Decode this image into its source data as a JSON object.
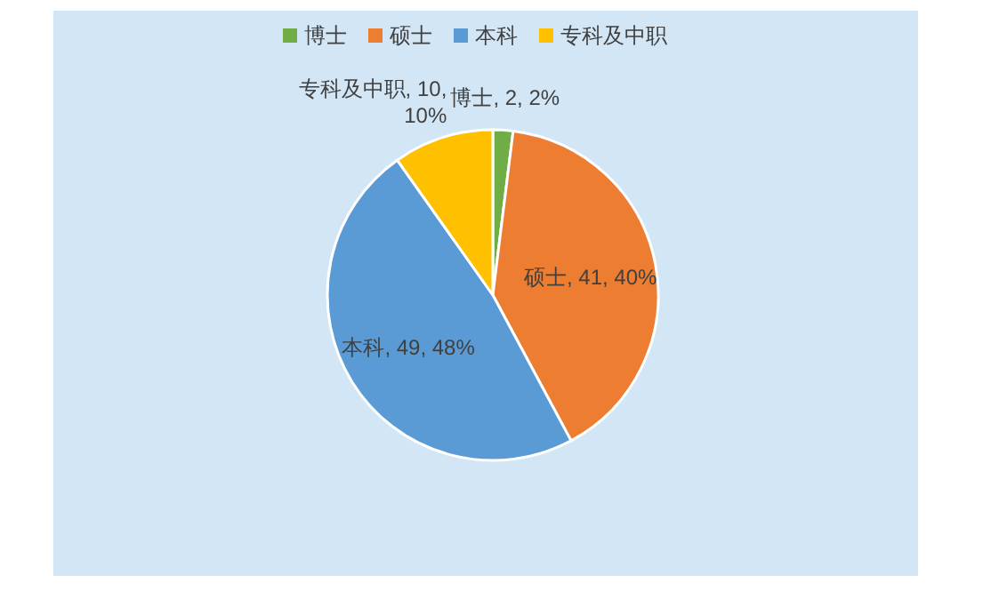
{
  "chart_data": {
    "type": "pie",
    "categories": [
      "博士",
      "硕士",
      "本科",
      "专科及中职"
    ],
    "values": [
      2,
      41,
      49,
      10
    ],
    "colors": [
      "#70ad47",
      "#ed7d31",
      "#5b9bd5",
      "#ffc000"
    ],
    "value_labels": [
      "博士, 2, 2%",
      "硕士, 41, 40%",
      "本科, 49, 48%",
      "专科及中职, 10, 10%"
    ],
    "legend": "top"
  }
}
